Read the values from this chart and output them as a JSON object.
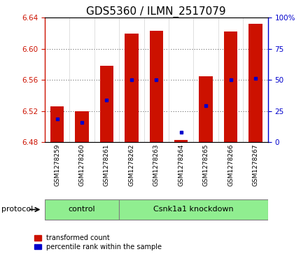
{
  "title": "GDS5360 / ILMN_2517079",
  "samples": [
    "GSM1278259",
    "GSM1278260",
    "GSM1278261",
    "GSM1278262",
    "GSM1278263",
    "GSM1278264",
    "GSM1278265",
    "GSM1278266",
    "GSM1278267"
  ],
  "red_top": [
    6.526,
    6.52,
    6.578,
    6.62,
    6.623,
    6.483,
    6.565,
    6.622,
    6.632
  ],
  "red_bottom": [
    6.48,
    6.48,
    6.48,
    6.48,
    6.48,
    6.48,
    6.48,
    6.48,
    6.48
  ],
  "blue_values": [
    6.51,
    6.505,
    6.534,
    6.56,
    6.56,
    6.493,
    6.527,
    6.56,
    6.562
  ],
  "ylim_left": [
    6.48,
    6.64
  ],
  "ylim_right": [
    0,
    100
  ],
  "yticks_left": [
    6.48,
    6.52,
    6.56,
    6.6,
    6.64
  ],
  "yticks_right": [
    0,
    25,
    50,
    75,
    100
  ],
  "groups": [
    {
      "label": "control",
      "indices": [
        0,
        1,
        2
      ]
    },
    {
      "label": "Csnk1a1 knockdown",
      "indices": [
        3,
        4,
        5,
        6,
        7,
        8
      ]
    }
  ],
  "protocol_label": "protocol",
  "bar_color": "#CC1100",
  "dot_color": "#0000CC",
  "gray_bg": "#D3D3D3",
  "green_bg": "#90EE90",
  "plot_bg": "#FFFFFF",
  "title_fontsize": 11,
  "tick_fontsize": 7.5,
  "sample_fontsize": 6.5,
  "legend_fontsize": 7,
  "group_fontsize": 8,
  "protocol_fontsize": 8
}
